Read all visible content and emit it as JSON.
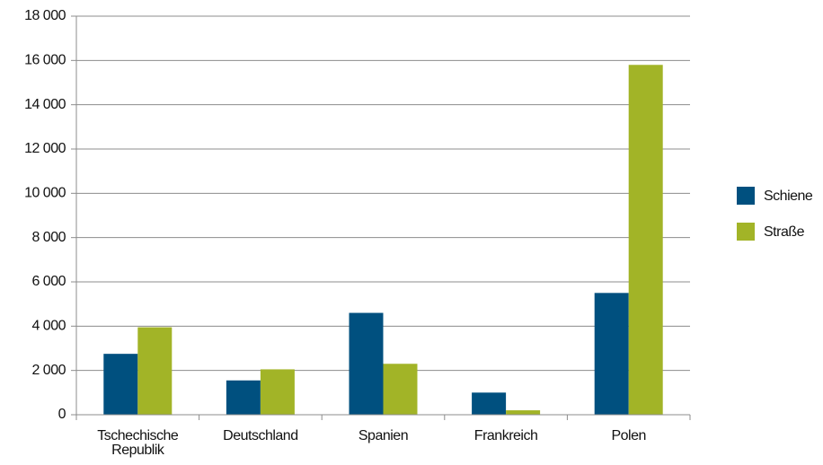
{
  "chart_data": {
    "type": "bar",
    "categories": [
      "Tschechische Republik",
      "Deutschland",
      "Spanien",
      "Frankreich",
      "Polen"
    ],
    "series": [
      {
        "name": "Schiene",
        "color": "#00507f",
        "values": [
          2750,
          1550,
          4600,
          1000,
          5500
        ]
      },
      {
        "name": "Straße",
        "color": "#a2b427",
        "values": [
          3950,
          2050,
          2300,
          200,
          15800
        ]
      }
    ],
    "ylim": [
      0,
      18000
    ],
    "yticks": [
      0,
      {
        "value": 2000,
        "label": "2 000"
      },
      {
        "value": 4000,
        "label": "4 000"
      },
      {
        "value": 6000,
        "label": "6 000"
      },
      {
        "value": 8000,
        "label": "8 000"
      },
      {
        "value": 10000,
        "label": "10 000"
      },
      {
        "value": 12000,
        "label": "12 000"
      },
      {
        "value": 14000,
        "label": "14 000"
      },
      {
        "value": 16000,
        "label": "16 000"
      },
      {
        "value": 18000,
        "label": "18 000"
      }
    ],
    "grid": true,
    "legend": "right"
  }
}
